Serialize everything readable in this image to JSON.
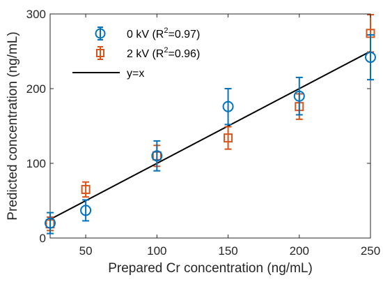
{
  "chart_data": {
    "type": "scatter",
    "title": "",
    "xlabel": "Prepared Cr concentration (ng/mL)",
    "ylabel": "Predicted concentration (ng/mL)",
    "xlim": [
      25,
      250
    ],
    "ylim": [
      0,
      300
    ],
    "xticks": [
      50,
      100,
      150,
      200,
      250
    ],
    "yticks": [
      0,
      100,
      200,
      300
    ],
    "xtick_labels": [
      "50",
      "100",
      "150",
      "200",
      "250"
    ],
    "ytick_labels": [
      "0",
      "100",
      "200",
      "300"
    ],
    "grid": false,
    "legend_position": "top-left",
    "series": [
      {
        "name": "0 kV (R2=0.97)",
        "legend": {
          "prefix": "0 kV (R",
          "sup": "2",
          "suffix": "=0.97)"
        },
        "marker": "circle",
        "color": "#0072BD",
        "x": [
          25,
          50,
          100,
          150,
          200,
          250
        ],
        "y": [
          20,
          37,
          110,
          176,
          190,
          242
        ],
        "err": [
          14,
          14,
          20,
          24,
          25,
          30
        ]
      },
      {
        "name": "2 kV (R2=0.96)",
        "legend": {
          "prefix": "2 kV (R",
          "sup": "2",
          "suffix": "=0.96)"
        },
        "marker": "square",
        "color": "#D95319",
        "x": [
          25,
          50,
          100,
          150,
          200,
          250
        ],
        "y": [
          19,
          65,
          110,
          134,
          176,
          274
        ],
        "err": [
          9,
          10,
          14,
          15,
          17,
          25
        ]
      }
    ],
    "reference_line": {
      "name": "y=x",
      "color": "#000000",
      "x": [
        25,
        250
      ],
      "y": [
        25,
        250
      ]
    }
  }
}
